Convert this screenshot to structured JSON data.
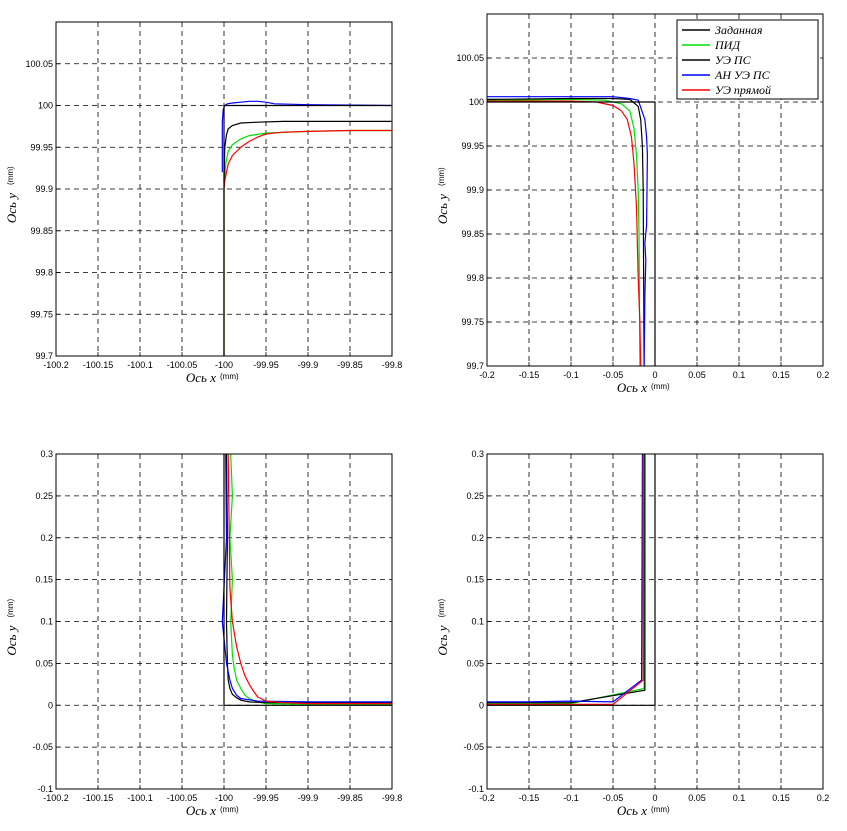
{
  "chart_data": [
    {
      "type": "line",
      "title": "",
      "xlabel": "Ось x",
      "xunit": "(mm)",
      "ylabel": "Ось y",
      "yunit": "(mm)",
      "xlim": [
        -100.2,
        -99.8
      ],
      "ylim": [
        99.7,
        100.1
      ],
      "xticks": [
        "-100.2",
        "-100.15",
        "-100.1",
        "-100.05",
        "-100",
        "-99.95",
        "-99.9",
        "-99.85",
        "-99.8"
      ],
      "yticks": [
        "99.7",
        "99.75",
        "99.8",
        "99.85",
        "99.9",
        "99.95",
        "100",
        "100.05"
      ],
      "ytick_values": [
        99.7,
        99.75,
        99.8,
        99.85,
        99.9,
        99.95,
        100,
        100.05
      ],
      "grid": true,
      "series": [
        {
          "name": "Заданная",
          "color": "#000000",
          "x": [
            -100,
            -100,
            -99.8
          ],
          "y": [
            99.7,
            100,
            100
          ]
        },
        {
          "name": "ПИД",
          "color": "#00e000",
          "x": [
            -100,
            -100,
            -99.998,
            -99.995,
            -99.99,
            -99.98,
            -99.97,
            -99.95,
            -99.9,
            -99.85,
            -99.8
          ],
          "y": [
            99.7,
            99.9,
            99.93,
            99.945,
            99.953,
            99.96,
            99.964,
            99.967,
            99.969,
            99.97,
            99.97
          ]
        },
        {
          "name": "УЭ ПС",
          "color": "#000000",
          "x": [
            -100,
            -99.999,
            -99.997,
            -99.995,
            -99.99,
            -99.98,
            -99.96,
            -99.93,
            -99.9,
            -99.8
          ],
          "y": [
            99.91,
            99.95,
            99.965,
            99.972,
            99.976,
            99.979,
            99.98,
            99.981,
            99.981,
            99.981
          ]
        },
        {
          "name": "АН УЭ ПС",
          "color": "#0000ff",
          "x": [
            -100.002,
            -100.002,
            -100.001,
            -99.999,
            -99.996,
            -99.99,
            -99.98,
            -99.97,
            -99.96,
            -99.95,
            -99.94,
            -99.9,
            -99.8
          ],
          "y": [
            99.92,
            99.98,
            99.995,
            100,
            100.002,
            100.003,
            100.004,
            100.005,
            100.005,
            100.004,
            100.002,
            100.001,
            100
          ]
        },
        {
          "name": "УЭ прямой",
          "color": "#ff0000",
          "x": [
            -100,
            -100,
            -99.999,
            -99.997,
            -99.995,
            -99.99,
            -99.98,
            -99.97,
            -99.96,
            -99.95,
            -99.93,
            -99.9,
            -99.85,
            -99.8
          ],
          "y": [
            99.7,
            99.9,
            99.91,
            99.92,
            99.93,
            99.94,
            99.95,
            99.957,
            99.962,
            99.966,
            99.968,
            99.969,
            99.97,
            99.97
          ]
        }
      ]
    },
    {
      "type": "line",
      "title": "",
      "xlabel": "Ось x",
      "xunit": "(mm)",
      "ylabel": "Ось y",
      "yunit": "(mm)",
      "xlim": [
        -0.2,
        0.2
      ],
      "ylim": [
        99.7,
        100.1
      ],
      "xticks": [
        "-0.2",
        "-0.15",
        "-0.1",
        "-0.05",
        "0",
        "0.05",
        "0.1",
        "0.15",
        "0.2"
      ],
      "yticks": [
        "99.7",
        "99.75",
        "99.8",
        "99.85",
        "99.9",
        "99.95",
        "100",
        "100.05"
      ],
      "ytick_values": [
        99.7,
        99.75,
        99.8,
        99.85,
        99.9,
        99.95,
        100,
        100.05
      ],
      "grid": true,
      "legend": "top-right",
      "series": [
        {
          "name": "Заданная",
          "color": "#000000",
          "x": [
            -0.2,
            0,
            0
          ],
          "y": [
            100,
            100,
            99.7
          ]
        },
        {
          "name": "ПИД",
          "color": "#00e000",
          "x": [
            -0.2,
            -0.1,
            -0.06,
            -0.04,
            -0.03,
            -0.025,
            -0.022,
            -0.02,
            -0.019,
            -0.018
          ],
          "y": [
            100.002,
            100.003,
            100.002,
            99.998,
            99.99,
            99.97,
            99.94,
            99.9,
            99.85,
            99.7
          ]
        },
        {
          "name": "УЭ ПС",
          "color": "#000000",
          "x": [
            -0.2,
            -0.1,
            -0.05,
            -0.03,
            -0.02,
            -0.017,
            -0.015,
            -0.014,
            -0.013
          ],
          "y": [
            100.003,
            100.004,
            100.004,
            100.003,
            99.995,
            99.98,
            99.95,
            99.9,
            99.7
          ]
        },
        {
          "name": "АН УЭ ПС",
          "color": "#0000ff",
          "x": [
            -0.2,
            -0.12,
            -0.08,
            -0.05,
            -0.03,
            -0.02,
            -0.012,
            -0.01,
            -0.009,
            -0.01,
            -0.012,
            -0.011,
            -0.012,
            -0.013
          ],
          "y": [
            100.006,
            100.006,
            100.006,
            100.006,
            100.004,
            100.002,
            99.98,
            99.96,
            99.94,
            99.86,
            99.84,
            99.82,
            99.78,
            99.7
          ]
        },
        {
          "name": "УЭ прямой",
          "color": "#ff0000",
          "x": [
            -0.2,
            -0.1,
            -0.07,
            -0.05,
            -0.04,
            -0.033,
            -0.028,
            -0.025,
            -0.022,
            -0.02,
            -0.018,
            -0.017
          ],
          "y": [
            100.001,
            100.001,
            100,
            99.996,
            99.99,
            99.98,
            99.96,
            99.93,
            99.88,
            99.8,
            99.75,
            99.7
          ]
        }
      ]
    },
    {
      "type": "line",
      "title": "",
      "xlabel": "Ось x",
      "xunit": "(mm)",
      "ylabel": "Ось y",
      "yunit": "(mm)",
      "xlim": [
        -100.2,
        -99.8
      ],
      "ylim": [
        -0.1,
        0.3
      ],
      "xticks": [
        "-100.2",
        "-100.15",
        "-100.1",
        "-100.05",
        "-100",
        "-99.95",
        "-99.9",
        "-99.85",
        "-99.8"
      ],
      "yticks": [
        "-0.1",
        "-0.05",
        "0",
        "0.05",
        "0.1",
        "0.15",
        "0.2",
        "0.25",
        "0.3"
      ],
      "ytick_values": [
        -0.1,
        -0.05,
        0,
        0.05,
        0.1,
        0.15,
        0.2,
        0.25,
        0.3
      ],
      "grid": true,
      "series": [
        {
          "name": "Заданная",
          "color": "#000000",
          "x": [
            -100,
            -100,
            -99.8
          ],
          "y": [
            0.3,
            0,
            0
          ]
        },
        {
          "name": "ПИД",
          "color": "#00e000",
          "x": [
            -99.992,
            -99.99,
            -99.993,
            -99.99,
            -99.992,
            -99.99,
            -99.988,
            -99.985,
            -99.98,
            -99.975,
            -99.97,
            -99.96,
            -99.95,
            -99.9,
            -99.8
          ],
          "y": [
            0.3,
            0.25,
            0.2,
            0.15,
            0.1,
            0.06,
            0.045,
            0.03,
            0.02,
            0.012,
            0.008,
            0.004,
            0.002,
            0.001,
            0.001
          ]
        },
        {
          "name": "УЭ ПС",
          "color": "#000000",
          "x": [
            -99.997,
            -99.996,
            -99.997,
            -99.996,
            -99.995,
            -99.993,
            -99.99,
            -99.985,
            -99.98,
            -99.97,
            -99.95,
            -99.9,
            -99.8
          ],
          "y": [
            0.3,
            0.2,
            0.1,
            0.05,
            0.03,
            0.02,
            0.013,
            0.009,
            0.006,
            0.004,
            0.003,
            0.003,
            0.003
          ]
        },
        {
          "name": "АН УЭ ПС",
          "color": "#0000ff",
          "x": [
            -99.998,
            -99.997,
            -100.002,
            -99.998,
            -99.997,
            -99.995,
            -99.993,
            -99.99,
            -99.985,
            -99.98,
            -99.96,
            -99.9,
            -99.8
          ],
          "y": [
            0.3,
            0.2,
            0.1,
            0.06,
            0.05,
            0.04,
            0.03,
            0.02,
            0.012,
            0.008,
            0.005,
            0.004,
            0.004
          ]
        },
        {
          "name": "УЭ прямой",
          "color": "#ff0000",
          "x": [
            -99.995,
            -99.993,
            -99.99,
            -99.985,
            -99.98,
            -99.975,
            -99.97,
            -99.965,
            -99.96,
            -99.95,
            -99.93,
            -99.9,
            -99.8
          ],
          "y": [
            0.3,
            0.14,
            0.1,
            0.07,
            0.05,
            0.035,
            0.025,
            0.017,
            0.01,
            0.005,
            0.003,
            0.002,
            0.002
          ]
        }
      ]
    },
    {
      "type": "line",
      "title": "",
      "xlabel": "Ось x",
      "xunit": "(mm)",
      "ylabel": "Ось y",
      "yunit": "(mm)",
      "xlim": [
        -0.2,
        0.2
      ],
      "ylim": [
        -0.1,
        0.3
      ],
      "xticks": [
        "-0.2",
        "-0.15",
        "-0.1",
        "-0.05",
        "0",
        "0.05",
        "0.1",
        "0.15",
        "0.2"
      ],
      "yticks": [
        "-0.1",
        "-0.05",
        "0",
        "0.05",
        "0.1",
        "0.15",
        "0.2",
        "0.25",
        "0.3"
      ],
      "ytick_values": [
        -0.1,
        -0.05,
        0,
        0.05,
        0.1,
        0.15,
        0.2,
        0.25,
        0.3
      ],
      "grid": true,
      "series": [
        {
          "name": "Заданная",
          "color": "#000000",
          "x": [
            0,
            0,
            -0.2
          ],
          "y": [
            0.3,
            0,
            0
          ]
        },
        {
          "name": "ПИД",
          "color": "#00e000",
          "x": [
            -0.013,
            -0.013,
            -0.1,
            -0.2
          ],
          "y": [
            0.3,
            0.02,
            0.002,
            0.002
          ]
        },
        {
          "name": "УЭ ПС",
          "color": "#000000",
          "x": [
            -0.012,
            -0.012,
            -0.1,
            -0.2
          ],
          "y": [
            0.3,
            0.018,
            0.003,
            0.003
          ]
        },
        {
          "name": "АН УЭ ПС",
          "color": "#0000ff",
          "x": [
            -0.015,
            -0.016,
            -0.05,
            -0.1,
            -0.15,
            -0.2
          ],
          "y": [
            0.3,
            0.03,
            0.004,
            0.005,
            0.004,
            0.004
          ]
        },
        {
          "name": "УЭ прямой",
          "color": "#ff0000",
          "x": [
            -0.014,
            -0.014,
            -0.05,
            -0.2
          ],
          "y": [
            0.3,
            0.03,
            0.001,
            0.001
          ]
        }
      ]
    }
  ]
}
